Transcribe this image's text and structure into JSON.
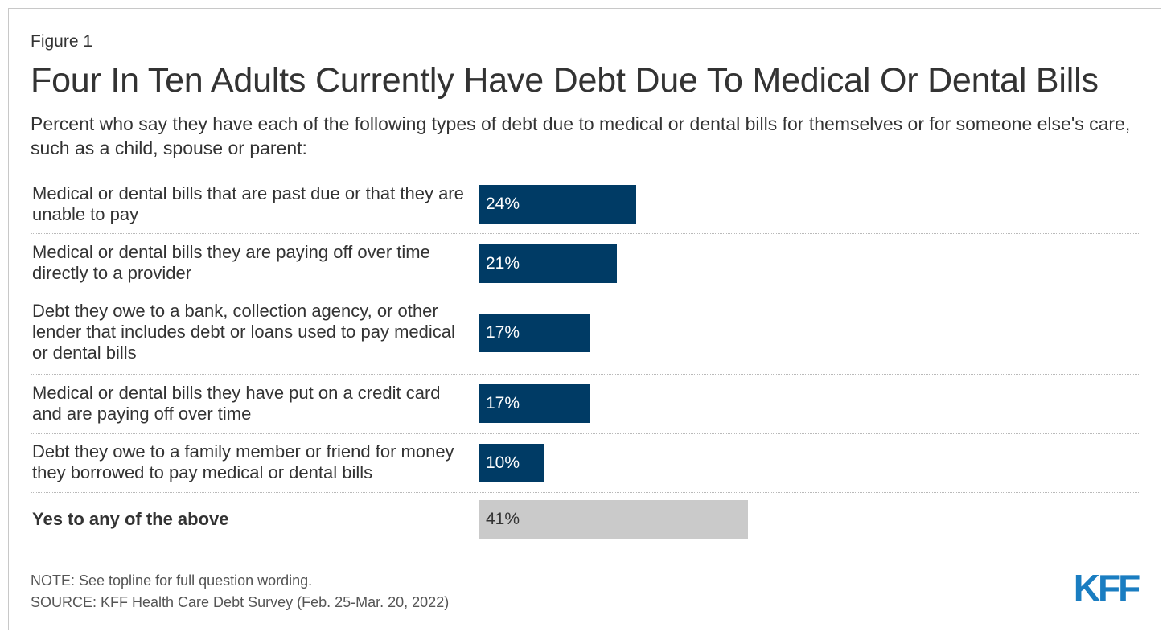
{
  "figure_label": "Figure 1",
  "chart_data": {
    "type": "bar",
    "orientation": "horizontal",
    "title": "Four In Ten Adults Currently Have Debt Due To Medical Or Dental Bills",
    "subtitle": "Percent who say they have each of the following types of debt due to medical or dental bills for themselves or for someone else's care, such as a child, spouse or parent:",
    "unit": "%",
    "xlim": [
      0,
      100
    ],
    "grid": false,
    "categories": [
      "Medical or dental bills that are past due or that they are unable to pay",
      "Medical or dental bills they are paying off over time directly to a provider",
      "Debt they owe to a bank, collection agency, or other lender that includes debt or loans used to pay medical or dental bills",
      "Medical or dental bills they have put on a credit card and are paying off over time",
      "Debt they owe to a family member or friend for money they borrowed to pay medical or dental bills",
      "Yes to any of the above"
    ],
    "values": [
      24,
      21,
      17,
      17,
      10,
      41
    ],
    "value_labels": [
      "24%",
      "21%",
      "17%",
      "17%",
      "10%",
      "41%"
    ],
    "bar_colors": [
      "#003b65",
      "#003b65",
      "#003b65",
      "#003b65",
      "#003b65",
      "#cacaca"
    ],
    "label_colors": [
      "#ffffff",
      "#ffffff",
      "#ffffff",
      "#ffffff",
      "#ffffff",
      "#333333"
    ]
  },
  "footer": {
    "note": "NOTE: See topline for full question wording.",
    "source": "SOURCE: KFF Health Care Debt Survey (Feb. 25-Mar. 20, 2022)"
  },
  "logo": {
    "text": "KFF",
    "color": "#1a7dc1"
  }
}
